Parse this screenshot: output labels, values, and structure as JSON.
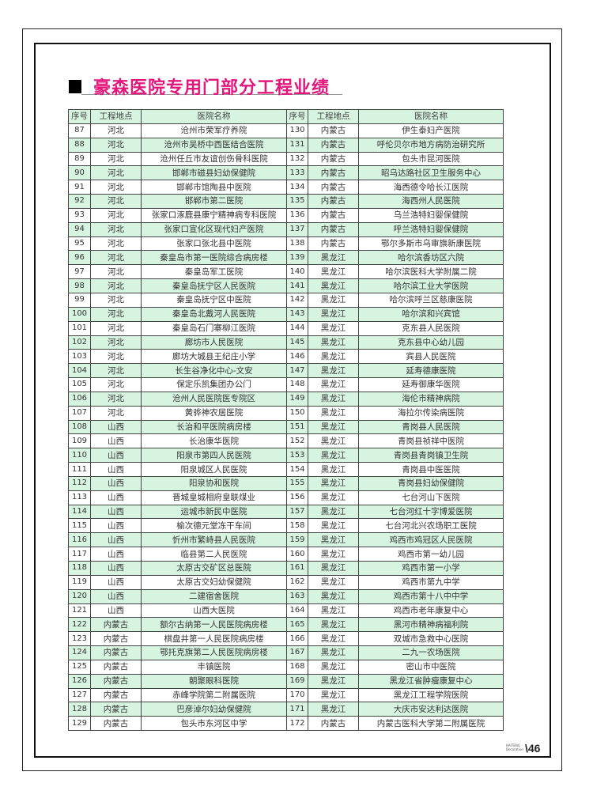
{
  "title": "豪森医院专用门部分工程业绩",
  "table": {
    "headers": [
      "序号",
      "工程地点",
      "医院名称",
      "序号",
      "工程地点",
      "医院名称"
    ],
    "rows": [
      [
        "87",
        "河北",
        "沧州市荣军疗养院",
        "130",
        "内蒙古",
        "伊生泰妇产医院"
      ],
      [
        "88",
        "河北",
        "沧州市吴桥中西医结合医院",
        "131",
        "内蒙古",
        "呼伦贝尔市地方病防治研究所"
      ],
      [
        "89",
        "河北",
        "沧州任丘市友谊创伤骨科医院",
        "132",
        "内蒙古",
        "包头市昆河医院"
      ],
      [
        "90",
        "河北",
        "邯郸市磁县妇幼保健院",
        "133",
        "内蒙古",
        "昭乌达路社区卫生服务中心"
      ],
      [
        "91",
        "河北",
        "邯郸市馆陶县中医院",
        "134",
        "内蒙古",
        "海西德令哈长江医院"
      ],
      [
        "92",
        "河北",
        "邯郸市第二医院",
        "135",
        "内蒙古",
        "海西州人民医院"
      ],
      [
        "93",
        "河北",
        "张家口涿鹿县康宁精神病专科医院",
        "136",
        "内蒙古",
        "乌兰浩特妇婴保健院"
      ],
      [
        "94",
        "河北",
        "张家口宣化区现代妇产医院",
        "137",
        "内蒙古",
        "呼兰浩特妇婴保健院"
      ],
      [
        "95",
        "河北",
        "张家口张北县中医院",
        "138",
        "内蒙古",
        "鄂尔多斯市乌审旗新康医院"
      ],
      [
        "96",
        "河北",
        "秦皇岛市第一医院综合病房楼",
        "139",
        "黑龙江",
        "哈尔滨香坊区六院"
      ],
      [
        "97",
        "河北",
        "秦皇岛军工医院",
        "140",
        "黑龙江",
        "哈尔滨医科大学附属二院"
      ],
      [
        "98",
        "河北",
        "秦皇岛抚宁区人民医院",
        "141",
        "黑龙江",
        "哈尔滨工业大学医院"
      ],
      [
        "99",
        "河北",
        "秦皇岛抚宁区中医院",
        "142",
        "黑龙江",
        "哈尔滨呼兰区慈康医院"
      ],
      [
        "100",
        "河北",
        "秦皇岛北戴河人民医院",
        "143",
        "黑龙江",
        "哈尔滨和兴宾馆"
      ],
      [
        "101",
        "河北",
        "秦皇岛石门寨柳江医院",
        "144",
        "黑龙江",
        "克东县人民医院"
      ],
      [
        "102",
        "河北",
        "廊坊市人民医院",
        "145",
        "黑龙江",
        "克东县中心幼儿园"
      ],
      [
        "103",
        "河北",
        "廊坊大城县王纪庄小学",
        "146",
        "黑龙江",
        "宾县人民医院"
      ],
      [
        "104",
        "河北",
        "长生谷净化中心-文安",
        "147",
        "黑龙江",
        "延寿德康医院"
      ],
      [
        "105",
        "河北",
        "保定乐凯集团办公门",
        "148",
        "黑龙江",
        "延寿御康华医院"
      ],
      [
        "106",
        "河北",
        "沧州人民医院医专院区",
        "149",
        "黑龙江",
        "海伦市精神病院"
      ],
      [
        "107",
        "河北",
        "黄骅神农居医院",
        "150",
        "黑龙江",
        "海拉尔传染病医院"
      ],
      [
        "108",
        "山西",
        "长治和平医院病房楼",
        "151",
        "黑龙江",
        "青岗县人民医院"
      ],
      [
        "109",
        "山西",
        "长治康华医院",
        "152",
        "黑龙江",
        "青岗县祯祥中医院"
      ],
      [
        "110",
        "山西",
        "阳泉市第四人民医院",
        "153",
        "黑龙江",
        "青岗县青岗镇卫生院"
      ],
      [
        "111",
        "山西",
        "阳泉城区人民医院",
        "154",
        "黑龙江",
        "青岗县中医医院"
      ],
      [
        "112",
        "山西",
        "阳泉协和医院",
        "155",
        "黑龙江",
        "青岗县妇幼保健院"
      ],
      [
        "113",
        "山西",
        "晋城皇城相府皇联煤业",
        "156",
        "黑龙江",
        "七台河山下医院"
      ],
      [
        "114",
        "山西",
        "运城市新民中医院",
        "157",
        "黑龙江",
        "七台河红十字博爱医院"
      ],
      [
        "115",
        "山西",
        "榆次德元堂冻干车间",
        "158",
        "黑龙江",
        "七台河北兴农场职工医院"
      ],
      [
        "116",
        "山西",
        "忻州市繁峙县人民医院",
        "159",
        "黑龙江",
        "鸡西市鸡冠区人民医院"
      ],
      [
        "117",
        "山西",
        "临县第二人民医院",
        "160",
        "黑龙江",
        "鸡西市第一幼儿园"
      ],
      [
        "118",
        "山西",
        "太原古交矿区总医院",
        "161",
        "黑龙江",
        "鸡西市第一小学"
      ],
      [
        "119",
        "山西",
        "太原古交妇幼保健院",
        "162",
        "黑龙江",
        "鸡西市第九中学"
      ],
      [
        "120",
        "山西",
        "二建宿舍医院",
        "163",
        "黑龙江",
        "鸡西市第十八中中学"
      ],
      [
        "121",
        "山西",
        "山西大医院",
        "164",
        "黑龙江",
        "鸡西市老年康复中心"
      ],
      [
        "122",
        "内蒙古",
        "额尔古纳第一人民医院病房楼",
        "165",
        "黑龙江",
        "黑河市精神病福利院"
      ],
      [
        "123",
        "内蒙古",
        "棋盘井第一人民医院病房楼",
        "166",
        "黑龙江",
        "双城市急救中心医院"
      ],
      [
        "124",
        "内蒙古",
        "鄂托克旗第二人民医院病房楼",
        "167",
        "黑龙江",
        "二九一农场医院"
      ],
      [
        "125",
        "内蒙古",
        "丰镇医院",
        "168",
        "黑龙江",
        "密山市中医院"
      ],
      [
        "126",
        "内蒙古",
        "朝聚眼科医院",
        "169",
        "黑龙江",
        "黑龙江省肿瘤康复中心"
      ],
      [
        "127",
        "内蒙古",
        "赤峰学院第二附属医院",
        "170",
        "黑龙江",
        "黑龙江工程学院医院"
      ],
      [
        "128",
        "内蒙古",
        "巴彦淖尔妇幼保健院",
        "171",
        "黑龙江",
        "大庆市安达利达医院"
      ],
      [
        "129",
        "内蒙古",
        "包头市东河区中学",
        "172",
        "内蒙古",
        "内蒙古医科大学第二附属医院"
      ]
    ]
  },
  "footer": {
    "brand": "HAITENG Decoration",
    "page": "\\46"
  },
  "colors": {
    "title": "#e2177c",
    "row_highlight": "#d6f4e0"
  }
}
